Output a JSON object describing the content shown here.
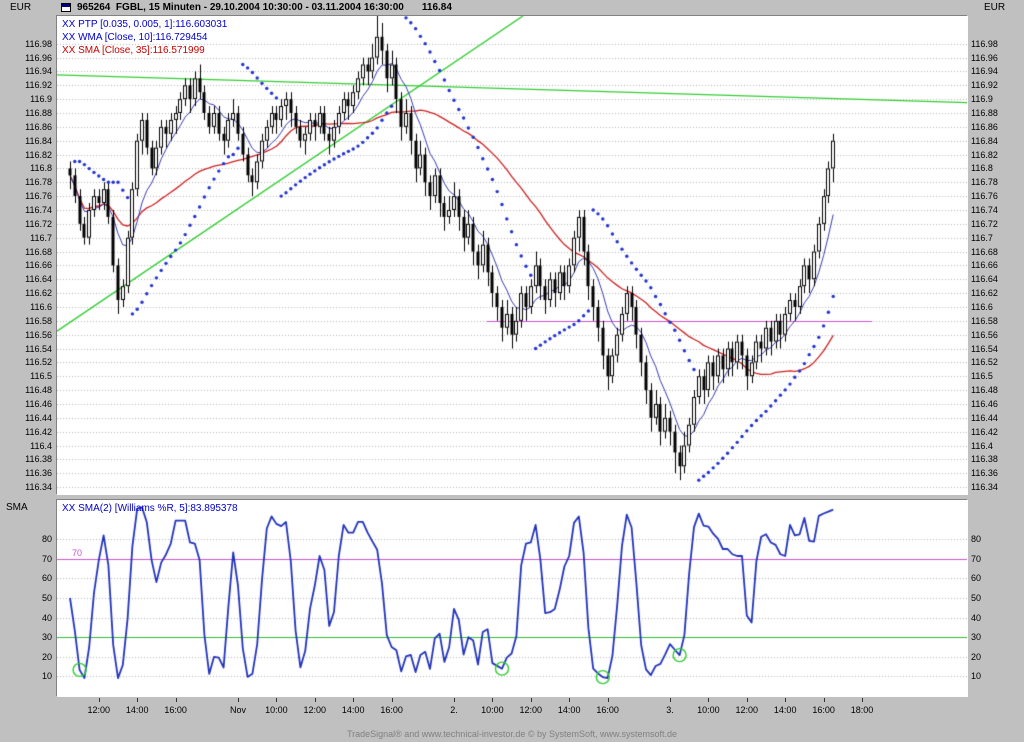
{
  "window": {
    "title": "965264  FGBL, 15 Minuten - 29.10.2004 10:30:00 - 03.11.2004 16:30:00",
    "last_price": "116.84",
    "footer": "TradeSignal® and www.technical-investor.de © by SystemSoft, www.systemsoft.de"
  },
  "main_panel": {
    "axis_label_left": "EUR",
    "axis_label_right": "EUR",
    "indicator_labels": [
      {
        "text": "XX PTP [0.035, 0.005, 1]:116.603031",
        "color": "#0000cc"
      },
      {
        "text": "XX WMA [Close, 10]:116.729454",
        "color": "#0000cc"
      },
      {
        "text": "XX SMA [Close, 35]:116.571999",
        "color": "#cc0000"
      }
    ],
    "price_ticks": [
      "116.98",
      "116.96",
      "116.94",
      "116.92",
      "116.9",
      "116.88",
      "116.86",
      "116.84",
      "116.82",
      "116.8",
      "116.78",
      "116.76",
      "116.74",
      "116.72",
      "116.7",
      "116.68",
      "116.66",
      "116.64",
      "116.62",
      "116.6",
      "116.58",
      "116.56",
      "116.54",
      "116.52",
      "116.5",
      "116.48",
      "116.46",
      "116.44",
      "116.42",
      "116.4",
      "116.38",
      "116.36",
      "116.34"
    ]
  },
  "sub_panel": {
    "axis_label": "SMA",
    "indicator_label": "XX SMA(2) [Williams %R, 5]:83.895378",
    "value_ticks": [
      "80",
      "70",
      "60",
      "50",
      "40",
      "30",
      "20",
      "10"
    ],
    "overbought_line": {
      "value": 70,
      "label": "70"
    },
    "oversold_line": {
      "value": 30
    },
    "signal_circles": [
      2,
      90,
      111,
      127
    ]
  },
  "time_axis": {
    "labels": [
      {
        "text": "12:00",
        "bar": 6
      },
      {
        "text": "14:00",
        "bar": 14
      },
      {
        "text": "16:00",
        "bar": 22
      },
      {
        "text": "Nov",
        "bar": 35
      },
      {
        "text": "10:00",
        "bar": 43
      },
      {
        "text": "12:00",
        "bar": 51
      },
      {
        "text": "14:00",
        "bar": 59
      },
      {
        "text": "16:00",
        "bar": 67
      },
      {
        "text": "2.",
        "bar": 80
      },
      {
        "text": "10:00",
        "bar": 88
      },
      {
        "text": "12:00",
        "bar": 96
      },
      {
        "text": "14:00",
        "bar": 104
      },
      {
        "text": "16:00",
        "bar": 112
      },
      {
        "text": "3.",
        "bar": 125
      },
      {
        "text": "10:00",
        "bar": 133
      },
      {
        "text": "12:00",
        "bar": 141
      },
      {
        "text": "14:00",
        "bar": 149
      },
      {
        "text": "16:00",
        "bar": 157
      },
      {
        "text": "18:00",
        "bar": 165
      }
    ]
  },
  "colors": {
    "background": "#c0c0c0",
    "plot_bg": "#ffffff",
    "grid": "#b6b6b6",
    "candle": "#000000",
    "ptp_dots": "#2233cc",
    "wma_line": "#3b3bb0",
    "sma_line": "#cc2222",
    "trendline": "#33cc33",
    "hline": "#cc55cc",
    "oscillator": "#2233bb",
    "overbought": "#cc55cc",
    "oversold": "#33bb33",
    "label_blue": "#0000cc",
    "footer_text": "#808080"
  },
  "chart_data": {
    "type": "candlestick",
    "symbol": "965264 FGBL",
    "interval": "15 Minuten",
    "period": "29.10.2004 10:30:00 - 03.11.2004 16:30:00",
    "currency": "EUR",
    "last_close": 116.84,
    "price_axis": {
      "min": 116.33,
      "max": 117.02,
      "tick_step": 0.02
    },
    "overlays": [
      {
        "name": "PTP",
        "params": [
          0.035,
          0.005,
          1
        ],
        "last_value": 116.603031,
        "style": "blue-dots"
      },
      {
        "name": "WMA",
        "params": [
          "Close",
          10
        ],
        "last_value": 116.729454,
        "style": "blue-line"
      },
      {
        "name": "SMA",
        "params": [
          "Close",
          35
        ],
        "last_value": 116.571999,
        "style": "red-line"
      }
    ],
    "trendlines": [
      {
        "x1_frac": 0,
        "price1": 116.935,
        "x2_frac": 1,
        "price2": 116.895
      },
      {
        "x1_frac": 0,
        "price1": 116.565,
        "x2_frac": 0.512,
        "price2": 117.02
      }
    ],
    "hline": {
      "price": 116.58,
      "x1_frac": 0.4725,
      "x2_frac": 0.8956
    },
    "indicator_panel": {
      "name": "SMA(2) [Williams %R, 5]",
      "last_value": 83.895378,
      "range": [
        0,
        100
      ],
      "overbought": 70,
      "oversold": 30
    },
    "bars": [
      [
        116.8,
        116.81,
        116.77,
        116.79
      ],
      [
        116.79,
        116.8,
        116.75,
        116.76
      ],
      [
        116.76,
        116.77,
        116.71,
        116.72
      ],
      [
        116.72,
        116.73,
        116.69,
        116.7
      ],
      [
        116.7,
        116.75,
        116.69,
        116.74
      ],
      [
        116.74,
        116.77,
        116.73,
        116.76
      ],
      [
        116.76,
        116.77,
        116.74,
        116.75
      ],
      [
        116.75,
        116.78,
        116.74,
        116.77
      ],
      [
        116.77,
        116.78,
        116.72,
        116.73
      ],
      [
        116.73,
        116.74,
        116.65,
        116.66
      ],
      [
        116.66,
        116.67,
        116.59,
        116.61
      ],
      [
        116.61,
        116.64,
        116.6,
        116.63
      ],
      [
        116.63,
        116.71,
        116.62,
        116.7
      ],
      [
        116.7,
        116.78,
        116.69,
        116.77
      ],
      [
        116.77,
        116.85,
        116.76,
        116.84
      ],
      [
        116.84,
        116.88,
        116.82,
        116.87
      ],
      [
        116.87,
        116.88,
        116.82,
        116.83
      ],
      [
        116.83,
        116.84,
        116.79,
        116.8
      ],
      [
        116.8,
        116.84,
        116.79,
        116.83
      ],
      [
        116.83,
        116.87,
        116.82,
        116.86
      ],
      [
        116.86,
        116.87,
        116.83,
        116.85
      ],
      [
        116.85,
        116.88,
        116.84,
        116.87
      ],
      [
        116.87,
        116.89,
        116.85,
        116.88
      ],
      [
        116.88,
        116.91,
        116.87,
        116.9
      ],
      [
        116.9,
        116.93,
        116.89,
        116.92
      ],
      [
        116.92,
        116.93,
        116.88,
        116.9
      ],
      [
        116.9,
        116.94,
        116.89,
        116.93
      ],
      [
        116.93,
        116.95,
        116.9,
        116.91
      ],
      [
        116.91,
        116.92,
        116.87,
        116.88
      ],
      [
        116.88,
        116.89,
        116.85,
        116.86
      ],
      [
        116.86,
        116.89,
        116.85,
        116.88
      ],
      [
        116.88,
        116.89,
        116.84,
        116.85
      ],
      [
        116.85,
        116.86,
        116.82,
        116.84
      ],
      [
        116.84,
        116.88,
        116.83,
        116.87
      ],
      [
        116.87,
        116.9,
        116.86,
        116.88
      ],
      [
        116.88,
        116.89,
        116.84,
        116.85
      ],
      [
        116.85,
        116.86,
        116.81,
        116.82
      ],
      [
        116.82,
        116.83,
        116.78,
        116.79
      ],
      [
        116.79,
        116.8,
        116.76,
        116.78
      ],
      [
        116.78,
        116.82,
        116.77,
        116.81
      ],
      [
        116.81,
        116.85,
        116.8,
        116.84
      ],
      [
        116.84,
        116.87,
        116.83,
        116.86
      ],
      [
        116.86,
        116.89,
        116.85,
        116.88
      ],
      [
        116.88,
        116.89,
        116.85,
        116.87
      ],
      [
        116.87,
        116.9,
        116.86,
        116.89
      ],
      [
        116.89,
        116.91,
        116.87,
        116.9
      ],
      [
        116.9,
        116.91,
        116.86,
        116.88
      ],
      [
        116.88,
        116.89,
        116.85,
        116.86
      ],
      [
        116.86,
        116.87,
        116.83,
        116.84
      ],
      [
        116.84,
        116.86,
        116.82,
        116.85
      ],
      [
        116.85,
        116.88,
        116.84,
        116.87
      ],
      [
        116.87,
        116.88,
        116.84,
        116.86
      ],
      [
        116.86,
        116.89,
        116.85,
        116.88
      ],
      [
        116.88,
        116.89,
        116.84,
        116.85
      ],
      [
        116.85,
        116.86,
        116.82,
        116.84
      ],
      [
        116.84,
        116.87,
        116.83,
        116.86
      ],
      [
        116.86,
        116.89,
        116.85,
        116.88
      ],
      [
        116.88,
        116.91,
        116.87,
        116.9
      ],
      [
        116.9,
        116.91,
        116.87,
        116.89
      ],
      [
        116.89,
        116.92,
        116.88,
        116.91
      ],
      [
        116.91,
        116.94,
        116.9,
        116.93
      ],
      [
        116.93,
        116.96,
        116.92,
        116.95
      ],
      [
        116.95,
        116.96,
        116.92,
        116.94
      ],
      [
        116.94,
        116.98,
        116.93,
        116.96
      ],
      [
        116.96,
        117.03,
        116.95,
        116.99
      ],
      [
        116.99,
        117.01,
        116.95,
        116.97
      ],
      [
        116.97,
        116.98,
        116.91,
        116.93
      ],
      [
        116.93,
        116.97,
        116.92,
        116.95
      ],
      [
        116.95,
        116.96,
        116.88,
        116.9
      ],
      [
        116.9,
        116.91,
        116.84,
        116.86
      ],
      [
        116.86,
        116.9,
        116.85,
        116.88
      ],
      [
        116.88,
        116.89,
        116.82,
        116.84
      ],
      [
        116.84,
        116.85,
        116.78,
        116.8
      ],
      [
        116.8,
        116.84,
        116.79,
        116.82
      ],
      [
        116.82,
        116.83,
        116.76,
        116.78
      ],
      [
        116.78,
        116.79,
        116.74,
        116.76
      ],
      [
        116.76,
        116.8,
        116.75,
        116.79
      ],
      [
        116.79,
        116.8,
        116.73,
        116.75
      ],
      [
        116.75,
        116.76,
        116.71,
        116.73
      ],
      [
        116.73,
        116.76,
        116.72,
        116.74
      ],
      [
        116.74,
        116.78,
        116.73,
        116.76
      ],
      [
        116.76,
        116.77,
        116.71,
        116.73
      ],
      [
        116.73,
        116.74,
        116.68,
        116.7
      ],
      [
        116.7,
        116.74,
        116.69,
        116.72
      ],
      [
        116.72,
        116.73,
        116.66,
        116.68
      ],
      [
        116.68,
        116.69,
        116.64,
        116.66
      ],
      [
        116.66,
        116.71,
        116.65,
        116.69
      ],
      [
        116.69,
        116.7,
        116.63,
        116.65
      ],
      [
        116.65,
        116.66,
        116.6,
        116.62
      ],
      [
        116.62,
        116.63,
        116.58,
        116.6
      ],
      [
        116.6,
        116.61,
        116.55,
        116.57
      ],
      [
        116.57,
        116.61,
        116.56,
        116.59
      ],
      [
        116.59,
        116.6,
        116.54,
        116.56
      ],
      [
        116.56,
        116.6,
        116.55,
        116.58
      ],
      [
        116.58,
        116.63,
        116.57,
        116.62
      ],
      [
        116.62,
        116.63,
        116.58,
        116.6
      ],
      [
        116.6,
        116.64,
        116.59,
        116.63
      ],
      [
        116.63,
        116.68,
        116.62,
        116.66
      ],
      [
        116.66,
        116.67,
        116.61,
        116.63
      ],
      [
        116.63,
        116.64,
        116.59,
        116.61
      ],
      [
        116.61,
        116.65,
        116.6,
        116.64
      ],
      [
        116.64,
        116.65,
        116.6,
        116.62
      ],
      [
        116.62,
        116.66,
        116.61,
        116.65
      ],
      [
        116.65,
        116.66,
        116.61,
        116.63
      ],
      [
        116.63,
        116.67,
        116.62,
        116.66
      ],
      [
        116.66,
        116.71,
        116.65,
        116.7
      ],
      [
        116.7,
        116.74,
        116.68,
        116.73
      ],
      [
        116.73,
        116.74,
        116.66,
        116.68
      ],
      [
        116.68,
        116.69,
        116.61,
        116.63
      ],
      [
        116.63,
        116.64,
        116.58,
        116.6
      ],
      [
        116.6,
        116.61,
        116.55,
        116.57
      ],
      [
        116.57,
        116.58,
        116.51,
        116.53
      ],
      [
        116.53,
        116.54,
        116.48,
        116.5
      ],
      [
        116.5,
        116.54,
        116.49,
        116.53
      ],
      [
        116.53,
        116.57,
        116.52,
        116.56
      ],
      [
        116.56,
        116.6,
        116.55,
        116.59
      ],
      [
        116.59,
        116.63,
        116.58,
        116.62
      ],
      [
        116.62,
        116.63,
        116.58,
        116.6
      ],
      [
        116.6,
        116.61,
        116.54,
        116.56
      ],
      [
        116.56,
        116.57,
        116.5,
        116.52
      ],
      [
        116.52,
        116.53,
        116.46,
        116.48
      ],
      [
        116.48,
        116.49,
        116.42,
        116.44
      ],
      [
        116.44,
        116.48,
        116.43,
        116.46
      ],
      [
        116.46,
        116.47,
        116.4,
        116.42
      ],
      [
        116.42,
        116.46,
        116.41,
        116.44
      ],
      [
        116.44,
        116.45,
        116.4,
        116.42
      ],
      [
        116.42,
        116.43,
        116.36,
        116.39
      ],
      [
        116.39,
        116.4,
        116.35,
        116.37
      ],
      [
        116.37,
        116.42,
        116.36,
        116.4
      ],
      [
        116.4,
        116.44,
        116.39,
        116.43
      ],
      [
        116.43,
        116.48,
        116.42,
        116.47
      ],
      [
        116.47,
        116.51,
        116.46,
        116.5
      ],
      [
        116.5,
        116.51,
        116.46,
        116.48
      ],
      [
        116.48,
        116.53,
        116.47,
        116.52
      ],
      [
        116.52,
        116.53,
        116.48,
        116.5
      ],
      [
        116.5,
        116.54,
        116.49,
        116.53
      ],
      [
        116.53,
        116.54,
        116.49,
        116.51
      ],
      [
        116.51,
        116.55,
        116.5,
        116.54
      ],
      [
        116.54,
        116.55,
        116.5,
        116.52
      ],
      [
        116.52,
        116.56,
        116.51,
        116.55
      ],
      [
        116.55,
        116.56,
        116.51,
        116.53
      ],
      [
        116.53,
        116.54,
        116.48,
        116.5
      ],
      [
        116.5,
        116.53,
        116.49,
        116.52
      ],
      [
        116.52,
        116.56,
        116.51,
        116.55
      ],
      [
        116.55,
        116.56,
        116.52,
        116.54
      ],
      [
        116.54,
        116.58,
        116.53,
        116.57
      ],
      [
        116.57,
        116.58,
        116.53,
        116.55
      ],
      [
        116.55,
        116.59,
        116.54,
        116.58
      ],
      [
        116.58,
        116.59,
        116.54,
        116.56
      ],
      [
        116.56,
        116.6,
        116.55,
        116.59
      ],
      [
        116.59,
        116.62,
        116.58,
        116.61
      ],
      [
        116.61,
        116.62,
        116.58,
        116.6
      ],
      [
        116.6,
        116.64,
        116.59,
        116.63
      ],
      [
        116.63,
        116.67,
        116.62,
        116.66
      ],
      [
        116.66,
        116.67,
        116.62,
        116.64
      ],
      [
        116.64,
        116.69,
        116.63,
        116.68
      ],
      [
        116.68,
        116.73,
        116.67,
        116.72
      ],
      [
        116.72,
        116.77,
        116.71,
        116.76
      ],
      [
        116.76,
        116.81,
        116.75,
        116.8
      ],
      [
        116.8,
        116.85,
        116.78,
        116.84
      ]
    ]
  }
}
